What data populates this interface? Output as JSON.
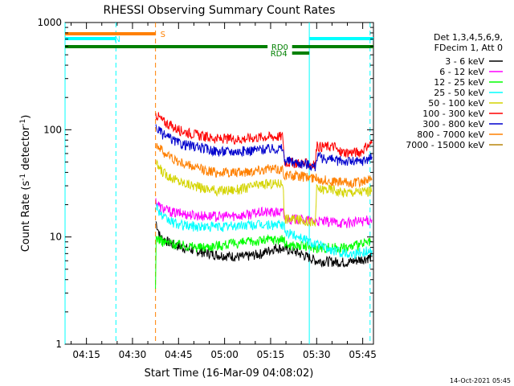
{
  "chart_data": {
    "type": "line",
    "title": "RHESSI Observing Summary Count Rates",
    "xlabel": "Start Time (16-Mar-09 04:08:02)",
    "ylabel_main": "Count Rate (s",
    "ylabel_sup1": "-1",
    "ylabel_mid": " detector",
    "ylabel_sup2": "-1",
    "ylabel_end": ")",
    "y_scale": "log",
    "ylim": [
      1,
      1000
    ],
    "xlim_min": [
      8.03,
      108.5
    ],
    "x_unit": "minutes after 04:00 UT",
    "y_ticks": [
      {
        "value": 1,
        "label": "1"
      },
      {
        "value": 10,
        "label": "10"
      },
      {
        "value": 100,
        "label": "100"
      },
      {
        "value": 1000,
        "label": "1000"
      }
    ],
    "x_ticks": [
      {
        "value": 15,
        "label": "04:15"
      },
      {
        "value": 30,
        "label": "04:30"
      },
      {
        "value": 45,
        "label": "04:45"
      },
      {
        "value": 60,
        "label": "05:00"
      },
      {
        "value": 75,
        "label": "05:15"
      },
      {
        "value": 90,
        "label": "05:30"
      },
      {
        "value": 105,
        "label": "05:45"
      }
    ],
    "legend_placement": "right",
    "legend_header": [
      "Det 1,3,4,5,6,9,",
      "FDecim 1, Att 0"
    ],
    "series": [
      {
        "name": "3 - 6 keV",
        "color": "#000000",
        "points": [
          [
            37.6,
            14
          ],
          [
            39,
            10
          ],
          [
            43,
            8.5
          ],
          [
            50,
            7.5
          ],
          [
            58,
            6.8
          ],
          [
            66,
            6.5
          ],
          [
            72,
            7
          ],
          [
            77,
            8
          ],
          [
            82,
            7.5
          ],
          [
            90,
            6
          ],
          [
            100,
            5.8
          ],
          [
            108,
            6.5
          ]
        ]
      },
      {
        "name": "6 - 12 keV",
        "color": "#ff00ff",
        "points": [
          [
            37.6,
            22
          ],
          [
            39,
            19
          ],
          [
            43,
            17
          ],
          [
            50,
            16
          ],
          [
            58,
            15.5
          ],
          [
            66,
            16
          ],
          [
            72,
            17
          ],
          [
            79,
            17
          ],
          [
            79.5,
            15
          ],
          [
            90,
            14
          ],
          [
            100,
            13.5
          ],
          [
            108,
            14.5
          ]
        ]
      },
      {
        "name": "12 - 25 keV",
        "color": "#00ff00",
        "points": [
          [
            37.5,
            3
          ],
          [
            37.7,
            10
          ],
          [
            40,
            9
          ],
          [
            45,
            8.5
          ],
          [
            52,
            8
          ],
          [
            60,
            8.5
          ],
          [
            68,
            9
          ],
          [
            75,
            9.5
          ],
          [
            79,
            9.5
          ],
          [
            80,
            8.5
          ],
          [
            90,
            8
          ],
          [
            100,
            8
          ],
          [
            108,
            9
          ]
        ]
      },
      {
        "name": "25 - 50 keV",
        "color": "#00ffff",
        "points": [
          [
            37.6,
            20
          ],
          [
            40,
            15
          ],
          [
            45,
            13
          ],
          [
            52,
            12.5
          ],
          [
            60,
            12.5
          ],
          [
            68,
            13
          ],
          [
            75,
            13
          ],
          [
            79,
            13
          ],
          [
            80,
            11
          ],
          [
            85,
            10
          ],
          [
            88,
            9
          ],
          [
            95,
            7.5
          ],
          [
            101,
            7
          ],
          [
            108,
            7.5
          ]
        ]
      },
      {
        "name": "50 - 100 keV",
        "color": "#d4d400",
        "points": [
          [
            37.6,
            48
          ],
          [
            40,
            40
          ],
          [
            45,
            33
          ],
          [
            52,
            29
          ],
          [
            58,
            27
          ],
          [
            65,
            28
          ],
          [
            72,
            31
          ],
          [
            79,
            32
          ],
          [
            79.5,
            15
          ],
          [
            88,
            14
          ],
          [
            89.5,
            13
          ],
          [
            90,
            28
          ],
          [
            96,
            28
          ],
          [
            97,
            26
          ],
          [
            108,
            27
          ]
        ]
      },
      {
        "name": "100 - 300 keV",
        "color": "#ff0000",
        "points": [
          [
            37.6,
            140
          ],
          [
            40,
            120
          ],
          [
            45,
            100
          ],
          [
            52,
            88
          ],
          [
            58,
            82
          ],
          [
            65,
            82
          ],
          [
            72,
            86
          ],
          [
            79,
            87
          ],
          [
            79.5,
            50
          ],
          [
            88,
            48
          ],
          [
            89.5,
            46
          ],
          [
            90,
            70
          ],
          [
            96,
            70
          ],
          [
            97,
            62
          ],
          [
            104,
            62
          ],
          [
            108,
            75
          ]
        ]
      },
      {
        "name": "300 - 800 keV",
        "color": "#0000cd",
        "points": [
          [
            37.6,
            105
          ],
          [
            40,
            90
          ],
          [
            45,
            75
          ],
          [
            52,
            68
          ],
          [
            58,
            63
          ],
          [
            65,
            63
          ],
          [
            72,
            66
          ],
          [
            79,
            67
          ],
          [
            79.5,
            52
          ],
          [
            88,
            47
          ],
          [
            89.5,
            45
          ],
          [
            90,
            56
          ],
          [
            96,
            52
          ],
          [
            104,
            50
          ],
          [
            108,
            56
          ]
        ]
      },
      {
        "name": "800 - 7000 keV",
        "color": "#ff8000",
        "points": [
          [
            37.6,
            75
          ],
          [
            40,
            62
          ],
          [
            45,
            50
          ],
          [
            52,
            43
          ],
          [
            58,
            40
          ],
          [
            65,
            40
          ],
          [
            72,
            43
          ],
          [
            79,
            43
          ],
          [
            79.5,
            38
          ],
          [
            88,
            36
          ],
          [
            95,
            33
          ],
          [
            101,
            32
          ],
          [
            108,
            34
          ]
        ]
      },
      {
        "name": "7000 - 15000 keV",
        "color": "#b8860b",
        "points": []
      }
    ],
    "annotations": {
      "vlines": [
        {
          "x": 8.03,
          "color": "#00ffff",
          "style": "solid"
        },
        {
          "x": 24.6,
          "color": "#00ffff",
          "style": "dashed"
        },
        {
          "x": 37.5,
          "color": "#ff8000",
          "style": "dashed"
        },
        {
          "x": 87.6,
          "color": "#00ffff",
          "style": "solid"
        },
        {
          "x": 107.4,
          "color": "#00ffff",
          "style": "dashed"
        }
      ],
      "segments": [
        {
          "label": "S",
          "color": "#ff8000",
          "x1": 8.03,
          "x2": 37.5,
          "level": 1
        },
        {
          "label": "N",
          "color": "#00ffff",
          "x1": 8.03,
          "x2": 24.6,
          "level": 2
        },
        {
          "label": "",
          "color": "#00ffff",
          "x1": 87.6,
          "x2": 108.5,
          "level": 2
        },
        {
          "label": "RD0",
          "color": "#008000",
          "x1": 8.03,
          "x2": 108.5,
          "level": 3,
          "gap": [
            74,
            82
          ]
        },
        {
          "label": "RD4",
          "color": "#008000",
          "x1": 82,
          "x2": 87.6,
          "level": 4
        }
      ]
    }
  },
  "footer": {
    "timestamp": "14-Oct-2021 05:45"
  }
}
